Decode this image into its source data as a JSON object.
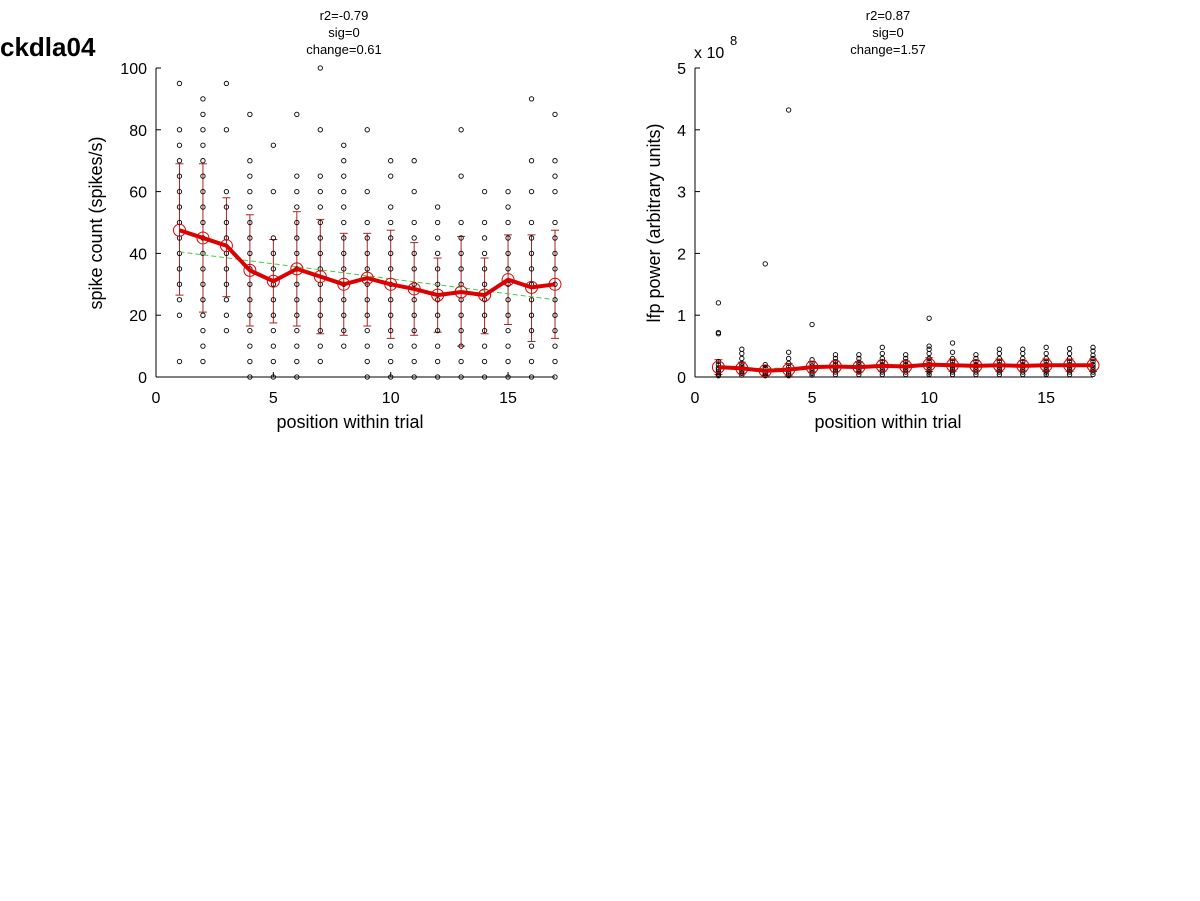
{
  "figure": {
    "title": "ckdla04"
  },
  "chart_data": [
    {
      "type": "scatter",
      "stats": [
        "r2=-0.79",
        "sig=0",
        "change=0.61"
      ],
      "xlabel": "position within trial",
      "ylabel": "spike count (spikes/s)",
      "xlim": [
        0,
        17
      ],
      "ylim": [
        0,
        100
      ],
      "xticks": [
        0,
        5,
        10,
        15
      ],
      "yticks": [
        0,
        20,
        40,
        60,
        80,
        100
      ],
      "grid": false,
      "colors": {
        "points": "#000000",
        "mean": "#dd0000",
        "errorbar": "#aa2222",
        "trend": "#44cc44"
      },
      "trials": [
        {
          "x": 1,
          "values": [
            5,
            20,
            25,
            30,
            35,
            40,
            45,
            50,
            55,
            60,
            65,
            70,
            75,
            80,
            95
          ]
        },
        {
          "x": 2,
          "values": [
            5,
            10,
            15,
            20,
            25,
            30,
            35,
            40,
            45,
            50,
            55,
            60,
            65,
            70,
            75,
            80,
            85,
            90
          ]
        },
        {
          "x": 3,
          "values": [
            15,
            20,
            25,
            30,
            35,
            40,
            45,
            50,
            55,
            60,
            80,
            95
          ]
        },
        {
          "x": 4,
          "values": [
            0,
            5,
            10,
            15,
            20,
            25,
            30,
            35,
            40,
            45,
            50,
            55,
            60,
            65,
            70,
            85
          ]
        },
        {
          "x": 5,
          "values": [
            0,
            5,
            10,
            15,
            20,
            25,
            30,
            35,
            40,
            45,
            60,
            75
          ]
        },
        {
          "x": 6,
          "values": [
            0,
            5,
            10,
            15,
            20,
            25,
            30,
            35,
            40,
            45,
            50,
            55,
            60,
            65,
            85
          ]
        },
        {
          "x": 7,
          "values": [
            5,
            10,
            15,
            20,
            25,
            30,
            35,
            40,
            45,
            50,
            55,
            60,
            65,
            80,
            100
          ]
        },
        {
          "x": 8,
          "values": [
            10,
            15,
            20,
            25,
            30,
            35,
            40,
            45,
            50,
            55,
            60,
            65,
            70,
            75
          ]
        },
        {
          "x": 9,
          "values": [
            0,
            5,
            10,
            15,
            20,
            25,
            30,
            35,
            40,
            45,
            50,
            60,
            80
          ]
        },
        {
          "x": 10,
          "values": [
            0,
            5,
            10,
            15,
            20,
            25,
            30,
            35,
            40,
            45,
            50,
            55,
            65,
            70
          ]
        },
        {
          "x": 11,
          "values": [
            0,
            5,
            10,
            15,
            20,
            25,
            30,
            35,
            40,
            45,
            50,
            60,
            70
          ]
        },
        {
          "x": 12,
          "values": [
            0,
            5,
            10,
            15,
            20,
            25,
            30,
            35,
            40,
            45,
            50,
            55
          ]
        },
        {
          "x": 13,
          "values": [
            0,
            5,
            10,
            15,
            20,
            25,
            30,
            35,
            40,
            45,
            50,
            65,
            80
          ]
        },
        {
          "x": 14,
          "values": [
            0,
            5,
            10,
            15,
            20,
            25,
            30,
            35,
            40,
            45,
            50,
            60
          ]
        },
        {
          "x": 15,
          "values": [
            0,
            5,
            10,
            15,
            20,
            25,
            30,
            35,
            40,
            45,
            50,
            55,
            60
          ]
        },
        {
          "x": 16,
          "values": [
            0,
            5,
            10,
            15,
            20,
            25,
            30,
            35,
            40,
            45,
            50,
            60,
            70,
            90
          ]
        },
        {
          "x": 17,
          "values": [
            0,
            5,
            10,
            15,
            20,
            25,
            30,
            35,
            40,
            45,
            50,
            60,
            65,
            70,
            85
          ]
        }
      ],
      "mean": {
        "x": [
          1,
          2,
          3,
          4,
          5,
          6,
          7,
          8,
          9,
          10,
          11,
          12,
          13,
          14,
          15,
          16,
          17
        ],
        "y": [
          47.5,
          45,
          42.5,
          34.5,
          31,
          35,
          32.5,
          30,
          32,
          30,
          28.5,
          26.5,
          27.5,
          26.5,
          31.5,
          29,
          30
        ],
        "err_low": [
          26.5,
          21,
          26,
          16.5,
          17.5,
          16.5,
          14,
          13.5,
          16.5,
          12.5,
          13.5,
          14.5,
          10,
          14,
          17,
          11.5,
          12.5
        ],
        "err_high": [
          69,
          69,
          58,
          52.5,
          44.5,
          53.5,
          51,
          46.5,
          46.5,
          47.5,
          43.5,
          38.5,
          45.5,
          38.5,
          46,
          46,
          47.5
        ]
      },
      "trend": {
        "x": [
          1,
          17
        ],
        "y": [
          40.5,
          25
        ]
      }
    },
    {
      "type": "scatter",
      "stats": [
        "r2=0.87",
        "sig=0",
        "change=1.57"
      ],
      "xlabel": "position within trial",
      "ylabel": "lfp power (arbitrary units)",
      "scale_note": "x 10",
      "scale_exponent": "8",
      "xlim": [
        0,
        17
      ],
      "ylim": [
        0,
        5
      ],
      "xticks": [
        0,
        5,
        10,
        15
      ],
      "yticks": [
        0,
        1,
        2,
        3,
        4,
        5
      ],
      "grid": false,
      "colors": {
        "points": "#000000",
        "mean": "#dd0000",
        "errorbar": "#aa2222",
        "trend": "#44cc44"
      },
      "trials": [
        {
          "x": 1,
          "values": [
            0.02,
            0.05,
            0.08,
            0.12,
            0.15,
            0.2,
            0.25,
            0.7,
            0.72,
            1.2
          ]
        },
        {
          "x": 2,
          "values": [
            0.03,
            0.06,
            0.1,
            0.14,
            0.18,
            0.22,
            0.3,
            0.38,
            0.45
          ]
        },
        {
          "x": 3,
          "values": [
            0.02,
            0.05,
            0.08,
            0.12,
            0.15,
            0.2,
            1.83
          ]
        },
        {
          "x": 4,
          "values": [
            0.02,
            0.05,
            0.08,
            0.12,
            0.16,
            0.22,
            0.3,
            0.4,
            4.32
          ]
        },
        {
          "x": 5,
          "values": [
            0.03,
            0.06,
            0.1,
            0.14,
            0.18,
            0.22,
            0.28,
            0.85
          ]
        },
        {
          "x": 6,
          "values": [
            0.04,
            0.08,
            0.12,
            0.16,
            0.2,
            0.25,
            0.3,
            0.36
          ]
        },
        {
          "x": 7,
          "values": [
            0.04,
            0.08,
            0.12,
            0.16,
            0.2,
            0.24,
            0.3,
            0.36
          ]
        },
        {
          "x": 8,
          "values": [
            0.04,
            0.08,
            0.12,
            0.16,
            0.2,
            0.25,
            0.3,
            0.38,
            0.48
          ]
        },
        {
          "x": 9,
          "values": [
            0.04,
            0.08,
            0.12,
            0.16,
            0.2,
            0.25,
            0.3,
            0.36
          ]
        },
        {
          "x": 10,
          "values": [
            0.04,
            0.08,
            0.12,
            0.16,
            0.2,
            0.25,
            0.3,
            0.38,
            0.45,
            0.5,
            0.95
          ]
        },
        {
          "x": 11,
          "values": [
            0.04,
            0.08,
            0.12,
            0.16,
            0.2,
            0.25,
            0.3,
            0.4,
            0.55
          ]
        },
        {
          "x": 12,
          "values": [
            0.04,
            0.08,
            0.12,
            0.16,
            0.2,
            0.25,
            0.3,
            0.36
          ]
        },
        {
          "x": 13,
          "values": [
            0.04,
            0.08,
            0.12,
            0.16,
            0.2,
            0.25,
            0.3,
            0.38,
            0.45
          ]
        },
        {
          "x": 14,
          "values": [
            0.04,
            0.08,
            0.12,
            0.16,
            0.2,
            0.25,
            0.3,
            0.38,
            0.45
          ]
        },
        {
          "x": 15,
          "values": [
            0.04,
            0.08,
            0.12,
            0.16,
            0.2,
            0.25,
            0.3,
            0.38,
            0.48
          ]
        },
        {
          "x": 16,
          "values": [
            0.04,
            0.08,
            0.12,
            0.16,
            0.2,
            0.25,
            0.3,
            0.38,
            0.46
          ]
        },
        {
          "x": 17,
          "values": [
            0.04,
            0.08,
            0.12,
            0.16,
            0.2,
            0.25,
            0.3,
            0.35,
            0.42,
            0.48
          ]
        }
      ],
      "mean": {
        "x": [
          1,
          2,
          3,
          4,
          5,
          6,
          7,
          8,
          9,
          10,
          11,
          12,
          13,
          14,
          15,
          16,
          17
        ],
        "y": [
          0.16,
          0.14,
          0.1,
          0.12,
          0.16,
          0.17,
          0.16,
          0.18,
          0.17,
          0.2,
          0.19,
          0.18,
          0.19,
          0.18,
          0.19,
          0.19,
          0.19
        ],
        "err_low": [
          0.04,
          0.05,
          0.03,
          0.02,
          0.07,
          0.08,
          0.08,
          0.09,
          0.08,
          0.09,
          0.09,
          0.09,
          0.09,
          0.09,
          0.09,
          0.09,
          0.09
        ],
        "err_high": [
          0.28,
          0.24,
          0.18,
          0.22,
          0.25,
          0.26,
          0.25,
          0.27,
          0.26,
          0.31,
          0.29,
          0.27,
          0.29,
          0.27,
          0.29,
          0.29,
          0.29
        ]
      },
      "trend": {
        "x": [
          1,
          17
        ],
        "y": [
          0.13,
          0.21
        ]
      }
    }
  ]
}
